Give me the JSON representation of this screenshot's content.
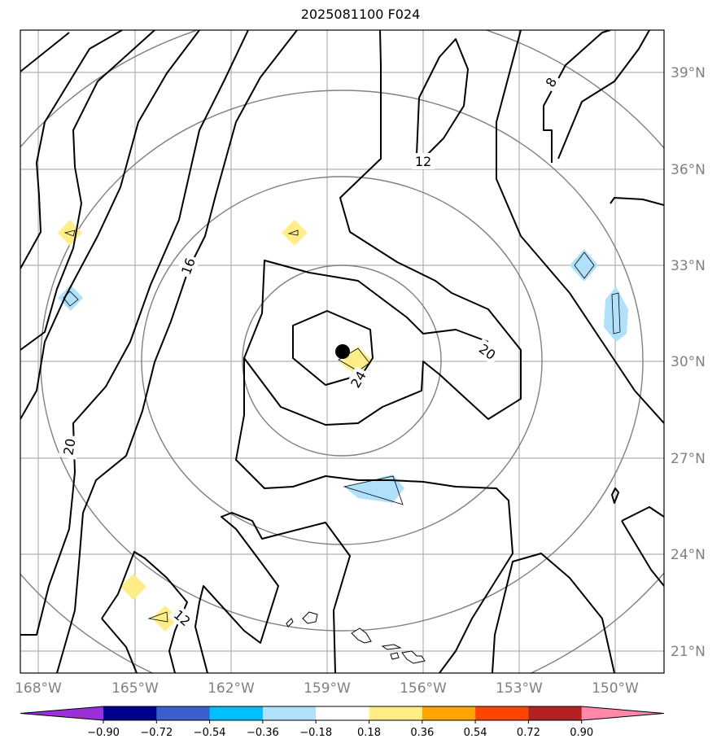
{
  "title": "2025081100 F024",
  "longitude_labels": [
    "168°W",
    "165°W",
    "162°W",
    "159°W",
    "156°W",
    "153°W",
    "150°W"
  ],
  "latitude_labels": [
    "39°N",
    "36°N",
    "33°N",
    "30°N",
    "27°N",
    "24°N",
    "21°N"
  ],
  "contour_labels": [
    {
      "id": "c8",
      "text": "8"
    },
    {
      "id": "c12-north",
      "text": "12"
    },
    {
      "id": "c16",
      "text": "16"
    },
    {
      "id": "c20-east",
      "text": "20"
    },
    {
      "id": "c24",
      "text": "24"
    },
    {
      "id": "c20-west",
      "text": "20"
    },
    {
      "id": "c12-south",
      "text": "12"
    }
  ],
  "colorbar": {
    "ticks": [
      "−0.90",
      "−0.72",
      "−0.54",
      "−0.36",
      "−0.18",
      "0.18",
      "0.36",
      "0.54",
      "0.72",
      "0.90"
    ],
    "colors": [
      "#9b30d9",
      "#00008b",
      "#3a5fcd",
      "#00bfff",
      "#b0e0fa",
      "#ffffff",
      "#ffee88",
      "#ffa500",
      "#ff4500",
      "#b22222",
      "#ff88aa"
    ]
  },
  "shading_colors": {
    "light_blue": "#b0e0fa",
    "light_yellow": "#ffee88"
  },
  "center_marker": "storm-center-dot"
}
